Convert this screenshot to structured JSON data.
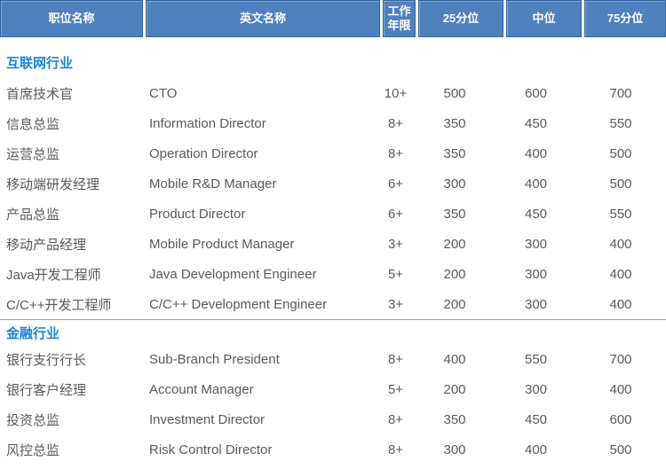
{
  "colors": {
    "page_bg": "#FFFFFF",
    "header_bg": "#4E81BD",
    "header_border": "#36649E",
    "header_text": "#FFFFFF",
    "section_title": "#1C83D4",
    "body_text": "#595959",
    "divider": "#A6A6A6"
  },
  "table": {
    "columns": [
      {
        "key": "position_cn",
        "label": "职位名称"
      },
      {
        "key": "position_en",
        "label": "英文名称"
      },
      {
        "key": "years",
        "label": "工作年限"
      },
      {
        "key": "p25",
        "label": "25分位"
      },
      {
        "key": "median",
        "label": "中位"
      },
      {
        "key": "p75",
        "label": "75分位"
      }
    ],
    "sections": [
      {
        "title": "互联网行业",
        "rows": [
          {
            "position_cn": "首席技术官",
            "position_en": "CTO",
            "years": "10+",
            "p25": "500",
            "median": "600",
            "p75": "700"
          },
          {
            "position_cn": "信息总监",
            "position_en": "Information Director",
            "years": "8+",
            "p25": "350",
            "median": "450",
            "p75": "550"
          },
          {
            "position_cn": "运营总监",
            "position_en": "Operation Director",
            "years": "8+",
            "p25": "350",
            "median": "400",
            "p75": "500"
          },
          {
            "position_cn": "移动端研发经理",
            "position_en": "Mobile R&D Manager",
            "years": "6+",
            "p25": "300",
            "median": "400",
            "p75": "500"
          },
          {
            "position_cn": "产品总监",
            "position_en": "Product Director",
            "years": "6+",
            "p25": "350",
            "median": "450",
            "p75": "550"
          },
          {
            "position_cn": "移动产品经理",
            "position_en": "Mobile Product Manager",
            "years": "3+",
            "p25": "200",
            "median": "300",
            "p75": "400"
          },
          {
            "position_cn": "Java开发工程师",
            "position_en": "Java Development Engineer",
            "years": "5+",
            "p25": "200",
            "median": "300",
            "p75": "400"
          },
          {
            "position_cn": "C/C++开发工程师",
            "position_en": "C/C++ Development Engineer",
            "years": "3+",
            "p25": "200",
            "median": "300",
            "p75": "400"
          }
        ]
      },
      {
        "title": "金融行业",
        "rows": [
          {
            "position_cn": "银行支行行长",
            "position_en": "Sub-Branch President",
            "years": "8+",
            "p25": "400",
            "median": "550",
            "p75": "700"
          },
          {
            "position_cn": "银行客户经理",
            "position_en": "Account Manager",
            "years": "5+",
            "p25": "200",
            "median": "300",
            "p75": "400"
          },
          {
            "position_cn": "投资总监",
            "position_en": "Investment Director",
            "years": "8+",
            "p25": "350",
            "median": "450",
            "p75": "600"
          },
          {
            "position_cn": "风控总监",
            "position_en": "Risk Control Director",
            "years": "8+",
            "p25": "300",
            "median": "400",
            "p75": "500"
          }
        ]
      }
    ]
  }
}
